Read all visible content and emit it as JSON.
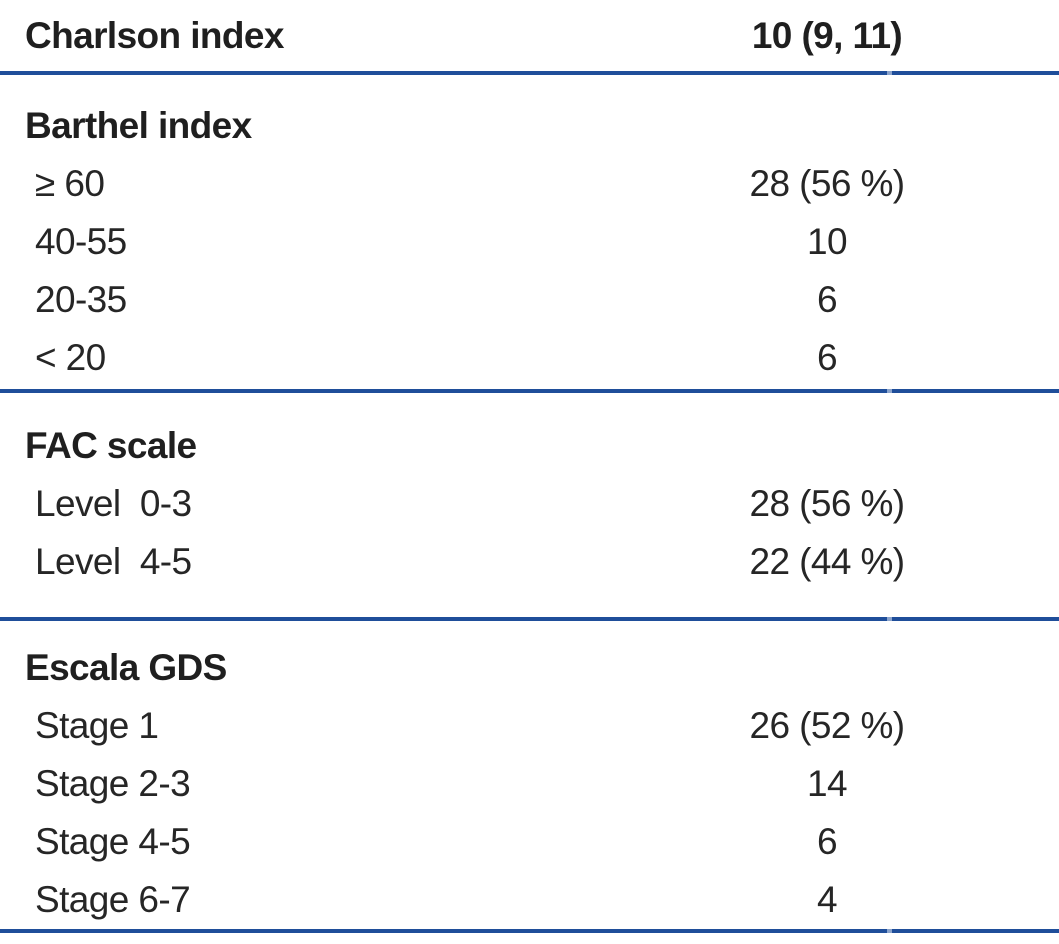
{
  "table": {
    "header_row": {
      "label": "Charlson index",
      "value": "10 (9, 11)"
    },
    "sections": [
      {
        "title": "Barthel index",
        "rows": [
          {
            "label": "≥ 60",
            "value": "28 (56 %)"
          },
          {
            "label": "40-55",
            "value": "10"
          },
          {
            "label": "20-35",
            "value": "6"
          },
          {
            "label": "< 20",
            "value": "6"
          }
        ]
      },
      {
        "title": "FAC scale",
        "rows": [
          {
            "label": "Level  0-3",
            "value": "28 (56 %)"
          },
          {
            "label": "Level  4-5",
            "value": "22 (44 %)"
          }
        ]
      },
      {
        "title": "Escala GDS",
        "rows": [
          {
            "label": "Stage 1",
            "value": "26 (52 %)"
          },
          {
            "label": "Stage 2-3",
            "value": "14"
          },
          {
            "label": "Stage 4-5",
            "value": "6"
          },
          {
            "label": "Stage 6-7",
            "value": "4"
          }
        ]
      }
    ],
    "colors": {
      "rule_blue": "#1F4E9A",
      "text": "#262626"
    }
  }
}
